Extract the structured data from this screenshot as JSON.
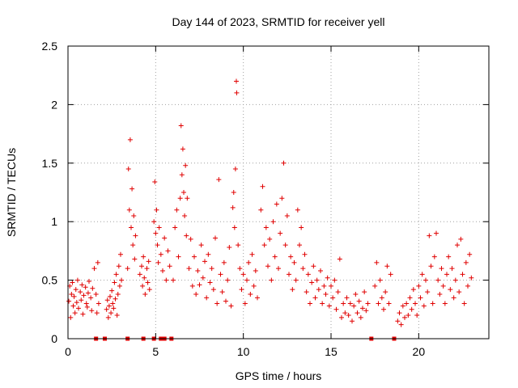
{
  "chart_data": {
    "type": "scatter",
    "title": "Day 144 of 2023, SRMTID for receiver yell",
    "xlabel": "GPS time / hours",
    "ylabel": "SRMTID / TECUs",
    "xlim": [
      0,
      24
    ],
    "ylim": [
      0,
      2.5
    ],
    "xticks": [
      0,
      5,
      10,
      15,
      20
    ],
    "yticks": [
      0,
      0.5,
      1,
      1.5,
      2,
      2.5
    ],
    "xtick_labels": [
      "0",
      "5",
      "10",
      "15",
      "20"
    ],
    "ytick_labels": [
      "0",
      "0.5",
      "1",
      "1.5",
      "2",
      "2.5"
    ],
    "grid": true,
    "marker": "plus",
    "color": "#e00000",
    "series": [
      {
        "name": "SRMTID",
        "points": [
          [
            0.05,
            0.32
          ],
          [
            0.1,
            0.45
          ],
          [
            0.15,
            0.18
          ],
          [
            0.2,
            0.38
          ],
          [
            0.25,
            0.48
          ],
          [
            0.3,
            0.28
          ],
          [
            0.35,
            0.36
          ],
          [
            0.4,
            0.22
          ],
          [
            0.45,
            0.42
          ],
          [
            0.5,
            0.31
          ],
          [
            0.55,
            0.5
          ],
          [
            0.6,
            0.26
          ],
          [
            0.7,
            0.4
          ],
          [
            0.75,
            0.33
          ],
          [
            0.8,
            0.46
          ],
          [
            0.85,
            0.21
          ],
          [
            0.9,
            0.37
          ],
          [
            1.0,
            0.44
          ],
          [
            1.05,
            0.3
          ],
          [
            1.1,
            0.27
          ],
          [
            1.15,
            0.39
          ],
          [
            1.2,
            0.49
          ],
          [
            1.3,
            0.35
          ],
          [
            1.35,
            0.24
          ],
          [
            1.4,
            0.43
          ],
          [
            1.5,
            0.6
          ],
          [
            1.6,
            0.38
          ],
          [
            1.65,
            0.22
          ],
          [
            1.7,
            0.65
          ],
          [
            1.75,
            0.3
          ],
          [
            2.2,
            0.25
          ],
          [
            2.25,
            0.33
          ],
          [
            2.3,
            0.18
          ],
          [
            2.35,
            0.28
          ],
          [
            2.4,
            0.36
          ],
          [
            2.45,
            0.22
          ],
          [
            2.5,
            0.41
          ],
          [
            2.55,
            0.3
          ],
          [
            2.6,
            0.26
          ],
          [
            2.65,
            0.48
          ],
          [
            2.7,
            0.34
          ],
          [
            2.75,
            0.55
          ],
          [
            2.8,
            0.2
          ],
          [
            2.85,
            0.38
          ],
          [
            2.9,
            0.62
          ],
          [
            2.95,
            0.45
          ],
          [
            3.0,
            0.72
          ],
          [
            3.05,
            0.5
          ],
          [
            3.4,
            0.6
          ],
          [
            3.45,
            1.45
          ],
          [
            3.5,
            1.1
          ],
          [
            3.55,
            1.7
          ],
          [
            3.6,
            0.95
          ],
          [
            3.65,
            1.28
          ],
          [
            3.7,
            0.8
          ],
          [
            3.75,
            1.05
          ],
          [
            3.8,
            0.68
          ],
          [
            3.85,
            0.88
          ],
          [
            4.1,
            0.55
          ],
          [
            4.2,
            0.62
          ],
          [
            4.25,
            0.45
          ],
          [
            4.3,
            0.7
          ],
          [
            4.35,
            0.52
          ],
          [
            4.4,
            0.38
          ],
          [
            4.5,
            0.6
          ],
          [
            4.55,
            0.48
          ],
          [
            4.6,
            0.66
          ],
          [
            4.65,
            0.42
          ],
          [
            4.9,
            1.0
          ],
          [
            4.95,
            1.34
          ],
          [
            5.0,
            0.9
          ],
          [
            5.05,
            1.1
          ],
          [
            5.1,
            0.8
          ],
          [
            5.15,
            0.65
          ],
          [
            5.2,
            0.95
          ],
          [
            5.3,
            0.72
          ],
          [
            5.4,
            0.58
          ],
          [
            5.5,
            0.86
          ],
          [
            5.6,
            0.5
          ],
          [
            5.7,
            0.75
          ],
          [
            5.8,
            0.62
          ],
          [
            6.0,
            0.5
          ],
          [
            6.1,
            0.95
          ],
          [
            6.2,
            1.1
          ],
          [
            6.3,
            0.7
          ],
          [
            6.4,
            1.2
          ],
          [
            6.45,
            1.82
          ],
          [
            6.5,
            1.4
          ],
          [
            6.55,
            1.62
          ],
          [
            6.6,
            1.25
          ],
          [
            6.65,
            1.05
          ],
          [
            6.7,
            1.48
          ],
          [
            6.75,
            0.88
          ],
          [
            6.8,
            1.2
          ],
          [
            6.9,
            0.6
          ],
          [
            7.0,
            0.85
          ],
          [
            7.1,
            0.45
          ],
          [
            7.2,
            0.7
          ],
          [
            7.3,
            0.38
          ],
          [
            7.4,
            0.58
          ],
          [
            7.5,
            0.46
          ],
          [
            7.6,
            0.8
          ],
          [
            7.7,
            0.52
          ],
          [
            7.8,
            0.66
          ],
          [
            7.9,
            0.35
          ],
          [
            8.0,
            0.72
          ],
          [
            8.1,
            0.48
          ],
          [
            8.2,
            0.6
          ],
          [
            8.3,
            0.42
          ],
          [
            8.4,
            0.86
          ],
          [
            8.5,
            0.3
          ],
          [
            8.6,
            1.36
          ],
          [
            8.7,
            0.55
          ],
          [
            8.8,
            0.4
          ],
          [
            8.9,
            0.65
          ],
          [
            9.0,
            0.32
          ],
          [
            9.1,
            0.5
          ],
          [
            9.2,
            0.78
          ],
          [
            9.3,
            0.28
          ],
          [
            9.4,
            1.12
          ],
          [
            9.45,
            1.25
          ],
          [
            9.5,
            0.95
          ],
          [
            9.55,
            1.45
          ],
          [
            9.6,
            2.2
          ],
          [
            9.62,
            2.1
          ],
          [
            9.7,
            0.8
          ],
          [
            9.8,
            0.6
          ],
          [
            9.9,
            0.42
          ],
          [
            10.0,
            0.55
          ],
          [
            10.1,
            0.3
          ],
          [
            10.2,
            0.5
          ],
          [
            10.3,
            0.65
          ],
          [
            10.4,
            0.38
          ],
          [
            10.5,
            0.72
          ],
          [
            10.6,
            0.45
          ],
          [
            10.7,
            0.58
          ],
          [
            10.8,
            0.35
          ],
          [
            11.0,
            1.1
          ],
          [
            11.1,
            1.3
          ],
          [
            11.2,
            0.8
          ],
          [
            11.3,
            0.95
          ],
          [
            11.4,
            0.62
          ],
          [
            11.5,
            0.85
          ],
          [
            11.6,
            0.5
          ],
          [
            11.7,
            1.0
          ],
          [
            11.8,
            0.7
          ],
          [
            11.9,
            1.15
          ],
          [
            12.0,
            0.6
          ],
          [
            12.1,
            0.9
          ],
          [
            12.2,
            1.2
          ],
          [
            12.3,
            1.5
          ],
          [
            12.4,
            0.8
          ],
          [
            12.5,
            1.05
          ],
          [
            12.6,
            0.55
          ],
          [
            12.7,
            0.7
          ],
          [
            12.8,
            0.42
          ],
          [
            12.9,
            0.65
          ],
          [
            13.0,
            0.5
          ],
          [
            13.1,
            1.1
          ],
          [
            13.2,
            0.8
          ],
          [
            13.3,
            0.95
          ],
          [
            13.4,
            0.6
          ],
          [
            13.5,
            0.72
          ],
          [
            13.6,
            0.4
          ],
          [
            13.7,
            0.55
          ],
          [
            13.8,
            0.3
          ],
          [
            13.9,
            0.48
          ],
          [
            14.0,
            0.62
          ],
          [
            14.1,
            0.35
          ],
          [
            14.2,
            0.5
          ],
          [
            14.3,
            0.42
          ],
          [
            14.4,
            0.58
          ],
          [
            14.5,
            0.3
          ],
          [
            14.6,
            0.45
          ],
          [
            14.7,
            0.38
          ],
          [
            14.8,
            0.52
          ],
          [
            14.9,
            0.28
          ],
          [
            15.0,
            0.45
          ],
          [
            15.1,
            0.35
          ],
          [
            15.2,
            0.5
          ],
          [
            15.3,
            0.25
          ],
          [
            15.4,
            0.4
          ],
          [
            15.5,
            0.68
          ],
          [
            15.6,
            0.18
          ],
          [
            15.7,
            0.3
          ],
          [
            15.8,
            0.22
          ],
          [
            15.9,
            0.35
          ],
          [
            16.0,
            0.2
          ],
          [
            16.1,
            0.3
          ],
          [
            16.2,
            0.15
          ],
          [
            16.3,
            0.28
          ],
          [
            16.4,
            0.38
          ],
          [
            16.5,
            0.22
          ],
          [
            16.6,
            0.32
          ],
          [
            16.7,
            0.18
          ],
          [
            16.8,
            0.26
          ],
          [
            16.9,
            0.4
          ],
          [
            17.0,
            0.24
          ],
          [
            17.1,
            0.3
          ],
          [
            17.5,
            0.45
          ],
          [
            17.6,
            0.65
          ],
          [
            17.7,
            0.3
          ],
          [
            17.8,
            0.5
          ],
          [
            17.9,
            0.35
          ],
          [
            18.0,
            0.25
          ],
          [
            18.1,
            0.4
          ],
          [
            18.2,
            0.62
          ],
          [
            18.3,
            0.3
          ],
          [
            18.4,
            0.55
          ],
          [
            18.8,
            0.15
          ],
          [
            18.9,
            0.22
          ],
          [
            19.0,
            0.12
          ],
          [
            19.1,
            0.28
          ],
          [
            19.2,
            0.18
          ],
          [
            19.3,
            0.3
          ],
          [
            19.4,
            0.2
          ],
          [
            19.5,
            0.35
          ],
          [
            19.6,
            0.25
          ],
          [
            19.7,
            0.42
          ],
          [
            19.8,
            0.3
          ],
          [
            19.9,
            0.2
          ],
          [
            20.0,
            0.45
          ],
          [
            20.1,
            0.35
          ],
          [
            20.2,
            0.55
          ],
          [
            20.3,
            0.28
          ],
          [
            20.4,
            0.5
          ],
          [
            20.5,
            0.4
          ],
          [
            20.6,
            0.88
          ],
          [
            20.7,
            0.62
          ],
          [
            20.8,
            0.3
          ],
          [
            20.9,
            0.7
          ],
          [
            21.0,
            0.9
          ],
          [
            21.1,
            0.5
          ],
          [
            21.2,
            0.38
          ],
          [
            21.3,
            0.6
          ],
          [
            21.4,
            0.45
          ],
          [
            21.5,
            0.3
          ],
          [
            21.6,
            0.55
          ],
          [
            21.7,
            0.7
          ],
          [
            21.8,
            0.42
          ],
          [
            21.9,
            0.6
          ],
          [
            22.0,
            0.35
          ],
          [
            22.1,
            0.5
          ],
          [
            22.2,
            0.8
          ],
          [
            22.3,
            0.4
          ],
          [
            22.4,
            0.85
          ],
          [
            22.5,
            0.55
          ],
          [
            22.6,
            0.3
          ],
          [
            22.7,
            0.65
          ],
          [
            22.8,
            0.45
          ],
          [
            22.9,
            0.72
          ],
          [
            23.0,
            0.52
          ]
        ]
      }
    ],
    "zero_markers": [
      1.6,
      2.1,
      3.4,
      4.3,
      4.9,
      5.3,
      5.5,
      5.9,
      17.3,
      18.6
    ]
  }
}
